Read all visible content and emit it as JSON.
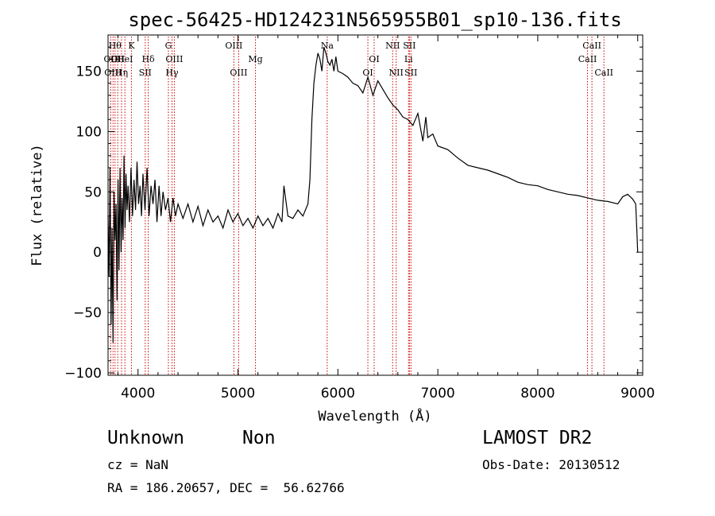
{
  "chart_data": {
    "type": "line",
    "title": "spec-56425-HD124231N565955B01_sp10-136.fits",
    "xlabel": "Wavelength (Å)",
    "ylabel": "Flux (relative)",
    "xlim": [
      3700,
      9050
    ],
    "ylim": [
      -102,
      180
    ],
    "x_ticks": [
      4000,
      5000,
      6000,
      7000,
      8000,
      9000
    ],
    "y_ticks": [
      -100,
      -50,
      0,
      50,
      100,
      150
    ],
    "grid": false,
    "line_color": "#000000",
    "marker_color": "#cc0000",
    "series": [
      {
        "x": [
          3700,
          3710,
          3720,
          3730,
          3740,
          3750,
          3760,
          3770,
          3780,
          3790,
          3800,
          3810,
          3820,
          3830,
          3840,
          3850,
          3860,
          3870,
          3880,
          3890,
          3900,
          3915,
          3930,
          3945,
          3960,
          3975,
          3990,
          4005,
          4020,
          4035,
          4050,
          4070,
          4090,
          4110,
          4130,
          4150,
          4170,
          4190,
          4210,
          4230,
          4250,
          4275,
          4300,
          4325,
          4350,
          4375,
          4400,
          4450,
          4500,
          4550,
          4600,
          4650,
          4700,
          4750,
          4800,
          4850,
          4900,
          4950,
          5000,
          5050,
          5100,
          5150,
          5200,
          5250,
          5300,
          5350,
          5400,
          5440,
          5460,
          5500,
          5550,
          5600,
          5650,
          5700,
          5720,
          5740,
          5760,
          5780,
          5800,
          5820,
          5840,
          5860,
          5880,
          5900,
          5920,
          5940,
          5960,
          5980,
          6000,
          6050,
          6100,
          6150,
          6200,
          6250,
          6300,
          6350,
          6400,
          6450,
          6500,
          6550,
          6600,
          6650,
          6700,
          6750,
          6800,
          6850,
          6880,
          6900,
          6950,
          7000,
          7100,
          7200,
          7300,
          7400,
          7500,
          7600,
          7700,
          7800,
          7900,
          8000,
          8100,
          8200,
          8300,
          8400,
          8500,
          8600,
          8700,
          8800,
          8850,
          8900,
          8950,
          8980,
          8990,
          9000
        ],
        "y": [
          30,
          -20,
          70,
          -60,
          20,
          -75,
          50,
          10,
          40,
          -40,
          60,
          -15,
          70,
          0,
          45,
          10,
          80,
          20,
          65,
          35,
          55,
          25,
          70,
          30,
          60,
          35,
          75,
          40,
          55,
          30,
          65,
          35,
          70,
          30,
          55,
          40,
          60,
          25,
          55,
          30,
          50,
          35,
          45,
          25,
          45,
          30,
          40,
          28,
          40,
          25,
          38,
          22,
          35,
          25,
          30,
          20,
          35,
          25,
          32,
          22,
          28,
          20,
          30,
          22,
          28,
          20,
          32,
          25,
          55,
          30,
          28,
          35,
          30,
          40,
          60,
          110,
          140,
          155,
          165,
          160,
          150,
          170,
          165,
          158,
          155,
          160,
          150,
          162,
          150,
          148,
          145,
          140,
          138,
          132,
          145,
          130,
          142,
          135,
          128,
          122,
          118,
          112,
          110,
          105,
          115,
          92,
          112,
          95,
          98,
          88,
          85,
          78,
          72,
          70,
          68,
          65,
          62,
          58,
          56,
          55,
          52,
          50,
          48,
          47,
          45,
          43,
          42,
          40,
          46,
          48,
          44,
          40,
          20,
          0
        ]
      }
    ],
    "line_markers": [
      {
        "x": 3727,
        "row": 2,
        "label": "OII"
      },
      {
        "x": 3750,
        "row": 3,
        "label": "OIII"
      },
      {
        "x": 3770,
        "row": 1,
        "label": "Hθ"
      },
      {
        "x": 3797,
        "row": 2,
        "label": "OII"
      },
      {
        "x": 3835,
        "row": 3,
        "label": "Hη"
      },
      {
        "x": 3869,
        "row": 2,
        "label": "HeI"
      },
      {
        "x": 3934,
        "row": 1,
        "label": "K"
      },
      {
        "x": 4102,
        "row": 2,
        "label": "Hδ"
      },
      {
        "x": 4072,
        "row": 3,
        "label": "SII"
      },
      {
        "x": 4304,
        "row": 1,
        "label": "G"
      },
      {
        "x": 4340,
        "row": 3,
        "label": "Hγ"
      },
      {
        "x": 4363,
        "row": 2,
        "label": "OIII"
      },
      {
        "x": 4959,
        "row": 1,
        "label": "OIII"
      },
      {
        "x": 5007,
        "row": 3,
        "label": "OIII"
      },
      {
        "x": 5175,
        "row": 2,
        "label": "Mg"
      },
      {
        "x": 5893,
        "row": 1,
        "label": "Na"
      },
      {
        "x": 6300,
        "row": 3,
        "label": "OI"
      },
      {
        "x": 6363,
        "row": 2,
        "label": "OI"
      },
      {
        "x": 6548,
        "row": 1,
        "label": "NII"
      },
      {
        "x": 6583,
        "row": 3,
        "label": "NII"
      },
      {
        "x": 6707,
        "row": 2,
        "label": "Li"
      },
      {
        "x": 6716,
        "row": 1,
        "label": "SII"
      },
      {
        "x": 6731,
        "row": 3,
        "label": "SII"
      },
      {
        "x": 8498,
        "row": 2,
        "label": "CaII"
      },
      {
        "x": 8542,
        "row": 1,
        "label": "CaII"
      },
      {
        "x": 8662,
        "row": 3,
        "label": "CaII"
      }
    ]
  },
  "info": {
    "object_class": "Unknown",
    "subclass": "Non",
    "survey": "LAMOST DR2",
    "redshift": "cz = NaN",
    "obs_date": "Obs-Date: 20130512",
    "coords": "RA = 186.20657, DEC =  56.62766"
  }
}
